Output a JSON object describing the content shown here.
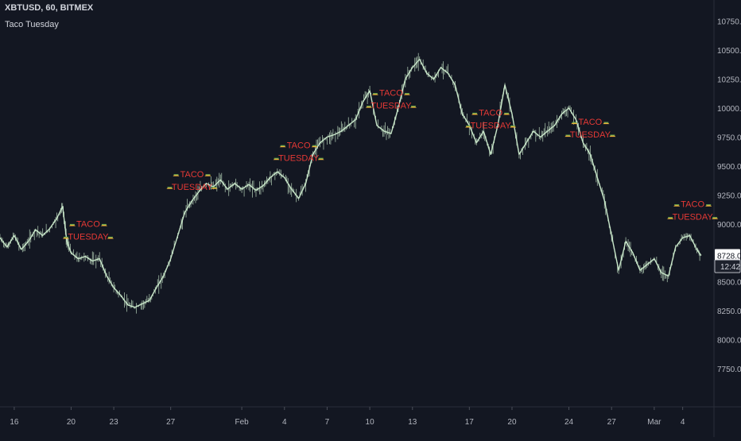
{
  "header": {
    "symbol_line": "XBTUSD, 60, BITMEX",
    "indicator": "Taco Tuesday"
  },
  "colors": {
    "background": "#131722",
    "price_line": "#c8e6c9",
    "label_text": "#e53935",
    "axis_text": "#b2b5be",
    "current_price_bg": "#ffffff",
    "time_badge_bg": "#1e222d",
    "taco_icon": "#f0b23a"
  },
  "chart_data": {
    "type": "line",
    "title": "",
    "ylim": [
      7600,
      10850
    ],
    "grid": false,
    "y_ticks": [
      {
        "value": 10750,
        "label": "10750.0"
      },
      {
        "value": 10500,
        "label": "10500.0"
      },
      {
        "value": 10250,
        "label": "10250.0"
      },
      {
        "value": 10000,
        "label": "10000.0"
      },
      {
        "value": 9750,
        "label": "9750.0"
      },
      {
        "value": 9500,
        "label": "9500.0"
      },
      {
        "value": 9250,
        "label": "9250.0"
      },
      {
        "value": 9000,
        "label": "9000.0"
      },
      {
        "value": 8500,
        "label": "8500.0"
      },
      {
        "value": 8250,
        "label": "8250.0"
      },
      {
        "value": 8000,
        "label": "8000.0"
      },
      {
        "value": 7750,
        "label": "7750.0"
      }
    ],
    "x_ticks": [
      {
        "t": 1,
        "label": "16"
      },
      {
        "t": 5,
        "label": "20"
      },
      {
        "t": 8,
        "label": "23"
      },
      {
        "t": 12,
        "label": "27"
      },
      {
        "t": 17,
        "label": "Feb"
      },
      {
        "t": 20,
        "label": "4"
      },
      {
        "t": 23,
        "label": "7"
      },
      {
        "t": 26,
        "label": "10"
      },
      {
        "t": 29,
        "label": "13"
      },
      {
        "t": 33,
        "label": "17"
      },
      {
        "t": 36,
        "label": "20"
      },
      {
        "t": 40,
        "label": "24"
      },
      {
        "t": 43,
        "label": "27"
      },
      {
        "t": 46,
        "label": "Mar"
      },
      {
        "t": 48,
        "label": "4"
      }
    ],
    "x_range": [
      0,
      50.2
    ],
    "series": [
      {
        "points": [
          [
            0,
            8880
          ],
          [
            0.5,
            8800
          ],
          [
            1,
            8900
          ],
          [
            1.5,
            8780
          ],
          [
            2,
            8850
          ],
          [
            2.5,
            8950
          ],
          [
            3,
            8900
          ],
          [
            3.5,
            8960
          ],
          [
            4,
            9050
          ],
          [
            4.4,
            9150
          ],
          [
            4.7,
            8850
          ],
          [
            5,
            8750
          ],
          [
            5.5,
            8700
          ],
          [
            6,
            8720
          ],
          [
            6.5,
            8680
          ],
          [
            7,
            8700
          ],
          [
            7.5,
            8550
          ],
          [
            8,
            8450
          ],
          [
            8.5,
            8380
          ],
          [
            9,
            8300
          ],
          [
            9.5,
            8280
          ],
          [
            10,
            8310
          ],
          [
            10.5,
            8340
          ],
          [
            11,
            8450
          ],
          [
            11.5,
            8550
          ],
          [
            12,
            8700
          ],
          [
            12.5,
            8900
          ],
          [
            13,
            9100
          ],
          [
            13.5,
            9200
          ],
          [
            14,
            9280
          ],
          [
            14.5,
            9350
          ],
          [
            15,
            9320
          ],
          [
            15.5,
            9380
          ],
          [
            16,
            9300
          ],
          [
            16.5,
            9350
          ],
          [
            17,
            9300
          ],
          [
            17.5,
            9340
          ],
          [
            18,
            9290
          ],
          [
            18.5,
            9330
          ],
          [
            19,
            9400
          ],
          [
            19.5,
            9450
          ],
          [
            20,
            9400
          ],
          [
            20.5,
            9300
          ],
          [
            21,
            9220
          ],
          [
            21.5,
            9350
          ],
          [
            22,
            9600
          ],
          [
            22.5,
            9700
          ],
          [
            23,
            9750
          ],
          [
            23.5,
            9770
          ],
          [
            24,
            9800
          ],
          [
            24.5,
            9850
          ],
          [
            25,
            9900
          ],
          [
            25.5,
            10050
          ],
          [
            26,
            10150
          ],
          [
            26.5,
            9850
          ],
          [
            27,
            9800
          ],
          [
            27.5,
            9780
          ],
          [
            28,
            10000
          ],
          [
            28.5,
            10250
          ],
          [
            29,
            10350
          ],
          [
            29.5,
            10420
          ],
          [
            30,
            10300
          ],
          [
            30.5,
            10250
          ],
          [
            31,
            10350
          ],
          [
            31.5,
            10300
          ],
          [
            32,
            10200
          ],
          [
            32.5,
            9950
          ],
          [
            33,
            9850
          ],
          [
            33.5,
            9700
          ],
          [
            34,
            9800
          ],
          [
            34.5,
            9600
          ],
          [
            35,
            9850
          ],
          [
            35.5,
            10200
          ],
          [
            36,
            9950
          ],
          [
            36.5,
            9600
          ],
          [
            37,
            9700
          ],
          [
            37.5,
            9800
          ],
          [
            38,
            9750
          ],
          [
            38.5,
            9800
          ],
          [
            39,
            9850
          ],
          [
            39.5,
            9950
          ],
          [
            40,
            10000
          ],
          [
            40.5,
            9900
          ],
          [
            41,
            9700
          ],
          [
            41.5,
            9600
          ],
          [
            42,
            9400
          ],
          [
            42.5,
            9200
          ],
          [
            43,
            8900
          ],
          [
            43.5,
            8600
          ],
          [
            44,
            8850
          ],
          [
            44.5,
            8750
          ],
          [
            45,
            8600
          ],
          [
            45.5,
            8650
          ],
          [
            46,
            8700
          ],
          [
            46.5,
            8580
          ],
          [
            47,
            8550
          ],
          [
            47.5,
            8800
          ],
          [
            48,
            8880
          ],
          [
            48.5,
            8900
          ],
          [
            49,
            8780
          ],
          [
            49.3,
            8728
          ]
        ]
      }
    ],
    "current_price": {
      "value": 8728,
      "label": "8728.0"
    },
    "countdown": {
      "value": 8635,
      "label": "12:42"
    },
    "annotations": [
      {
        "t": 6.2,
        "y": 8920,
        "top": "TACO",
        "bottom": "TUESDAY"
      },
      {
        "t": 13.5,
        "y": 9350,
        "top": "TACO",
        "bottom": "TUESDAY"
      },
      {
        "t": 21.0,
        "y": 9600,
        "top": "TACO",
        "bottom": "TUESDAY"
      },
      {
        "t": 27.5,
        "y": 10050,
        "top": "TACO",
        "bottom": "TUESDAY"
      },
      {
        "t": 34.5,
        "y": 9880,
        "top": "TACO",
        "bottom": "TUESDAY"
      },
      {
        "t": 41.5,
        "y": 9800,
        "top": "TACO",
        "bottom": "TUESDAY"
      },
      {
        "t": 48.7,
        "y": 9090,
        "top": "TACO",
        "bottom": "TUESDAY"
      }
    ]
  }
}
